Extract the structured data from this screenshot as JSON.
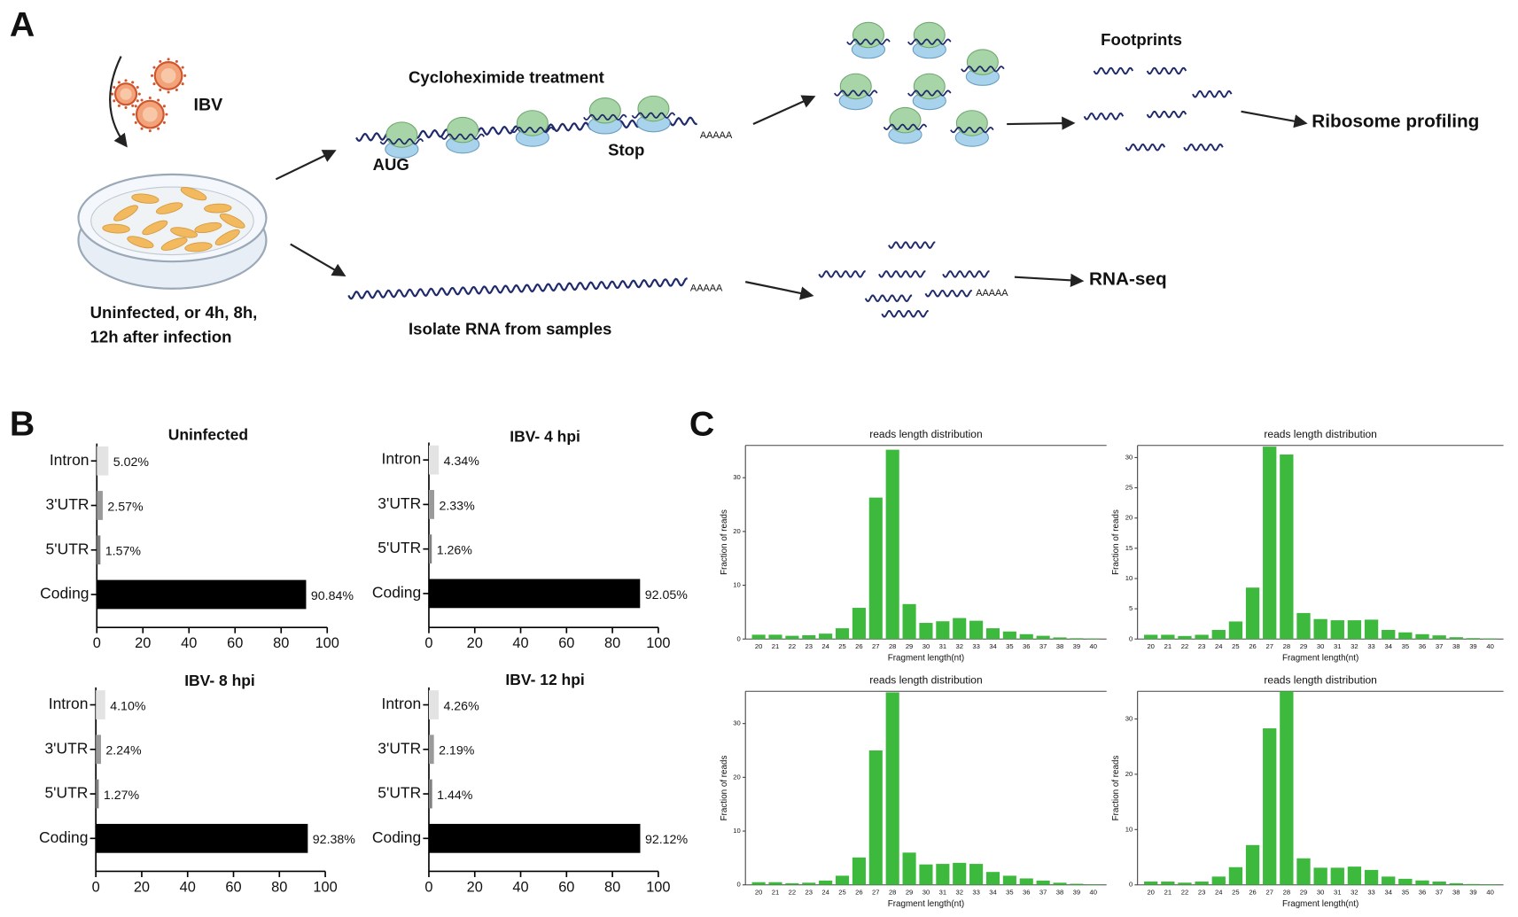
{
  "panel_labels": [
    "A",
    "B",
    "C"
  ],
  "panel_a": {
    "virus": "IBV",
    "samples": [
      "Uninfected, or 4h, 8h,",
      "12h after infection"
    ],
    "treatment": "Cycloheximide treatment",
    "start_codon": "AUG",
    "stop_codon": "Stop",
    "poly_a": [
      "AAAAA",
      "AAAAA",
      "AAAAA"
    ],
    "footprints": "Footprints",
    "ribo_output": "Ribosome profiling",
    "rna_output": "RNA-seq",
    "isolate": "Isolate RNA from samples"
  },
  "chart_data": [
    {
      "type": "bar",
      "horizontal": true,
      "title": "Uninfected",
      "categories": [
        "Intron",
        "3'UTR",
        "5'UTR",
        "Coding"
      ],
      "values": [
        5.02,
        2.57,
        1.57,
        90.84
      ],
      "value_labels": [
        "5.02%",
        "2.57%",
        "1.57%",
        "90.84%"
      ],
      "colors": [
        "#e3e3e3",
        "#9a9a9a",
        "#808080",
        "#000000"
      ],
      "xlim": [
        0,
        100
      ],
      "xticks": [
        0,
        20,
        40,
        60,
        80,
        100
      ]
    },
    {
      "type": "bar",
      "horizontal": true,
      "title": "IBV- 4 hpi",
      "categories": [
        "Intron",
        "3'UTR",
        "5'UTR",
        "Coding"
      ],
      "values": [
        4.34,
        2.33,
        1.26,
        92.05
      ],
      "value_labels": [
        "4.34%",
        "2.33%",
        "1.26%",
        "92.05%"
      ],
      "colors": [
        "#e3e3e3",
        "#9a9a9a",
        "#808080",
        "#000000"
      ],
      "xlim": [
        0,
        100
      ],
      "xticks": [
        0,
        20,
        40,
        60,
        80,
        100
      ]
    },
    {
      "type": "bar",
      "horizontal": true,
      "title": "IBV- 8 hpi",
      "categories": [
        "Intron",
        "3'UTR",
        "5'UTR",
        "Coding"
      ],
      "values": [
        4.1,
        2.24,
        1.27,
        92.38
      ],
      "value_labels": [
        "4.10%",
        "2.24%",
        "1.27%",
        "92.38%"
      ],
      "colors": [
        "#e3e3e3",
        "#9a9a9a",
        "#808080",
        "#000000"
      ],
      "xlim": [
        0,
        100
      ],
      "xticks": [
        0,
        20,
        40,
        60,
        80,
        100
      ]
    },
    {
      "type": "bar",
      "horizontal": true,
      "title": "IBV- 12 hpi",
      "categories": [
        "Intron",
        "3'UTR",
        "5'UTR",
        "Coding"
      ],
      "values": [
        4.26,
        2.19,
        1.44,
        92.12
      ],
      "value_labels": [
        "4.26%",
        "2.19%",
        "1.44%",
        "92.12%"
      ],
      "colors": [
        "#e3e3e3",
        "#9a9a9a",
        "#808080",
        "#000000"
      ],
      "xlim": [
        0,
        100
      ],
      "xticks": [
        0,
        20,
        40,
        60,
        80,
        100
      ]
    },
    {
      "type": "bar",
      "title": "reads length distribution",
      "xlabel": "Fragment length(nt)",
      "ylabel": "Fraction of reads",
      "color": "#3dba3d",
      "categories": [
        20,
        21,
        22,
        23,
        24,
        25,
        26,
        27,
        28,
        29,
        30,
        31,
        32,
        33,
        34,
        35,
        36,
        37,
        38,
        39,
        40
      ],
      "values": [
        0.8,
        0.8,
        0.6,
        0.7,
        1.0,
        2.0,
        5.8,
        26.3,
        35.2,
        6.5,
        3.0,
        3.3,
        3.9,
        3.4,
        2.0,
        1.4,
        0.9,
        0.6,
        0.3,
        0.15,
        0.1
      ],
      "ylim": [
        0,
        36
      ],
      "yticks": [
        0,
        10,
        20,
        30
      ]
    },
    {
      "type": "bar",
      "title": "reads length distribution",
      "xlabel": "Fragment length(nt)",
      "ylabel": "Fraction of reads",
      "color": "#3dba3d",
      "categories": [
        20,
        21,
        22,
        23,
        24,
        25,
        26,
        27,
        28,
        29,
        30,
        31,
        32,
        33,
        34,
        35,
        36,
        37,
        38,
        39,
        40
      ],
      "values": [
        0.7,
        0.7,
        0.5,
        0.7,
        1.5,
        2.9,
        8.5,
        31.8,
        30.5,
        4.3,
        3.3,
        3.1,
        3.1,
        3.2,
        1.5,
        1.1,
        0.8,
        0.6,
        0.3,
        0.15,
        0.1
      ],
      "ylim": [
        0,
        32
      ],
      "yticks": [
        0,
        5,
        10,
        15,
        20,
        25,
        30
      ]
    },
    {
      "type": "bar",
      "title": "reads length distribution",
      "xlabel": "Fragment length(nt)",
      "ylabel": "Fraction of reads",
      "color": "#3dba3d",
      "categories": [
        20,
        21,
        22,
        23,
        24,
        25,
        26,
        27,
        28,
        29,
        30,
        31,
        32,
        33,
        34,
        35,
        36,
        37,
        38,
        39,
        40
      ],
      "values": [
        0.5,
        0.5,
        0.3,
        0.4,
        0.8,
        1.7,
        5.1,
        25.0,
        35.8,
        6.0,
        3.8,
        3.9,
        4.1,
        3.9,
        2.4,
        1.7,
        1.2,
        0.8,
        0.4,
        0.2,
        0.1
      ],
      "ylim": [
        0,
        36
      ],
      "yticks": [
        0,
        10,
        20,
        30
      ]
    },
    {
      "type": "bar",
      "title": "reads length distribution",
      "xlabel": "Fragment length(nt)",
      "ylabel": "Fraction of reads",
      "color": "#3dba3d",
      "categories": [
        20,
        21,
        22,
        23,
        24,
        25,
        26,
        27,
        28,
        29,
        30,
        31,
        32,
        33,
        34,
        35,
        36,
        37,
        38,
        39,
        40
      ],
      "values": [
        0.6,
        0.6,
        0.4,
        0.6,
        1.5,
        3.2,
        7.2,
        28.3,
        35.0,
        4.8,
        3.1,
        3.1,
        3.3,
        2.7,
        1.5,
        1.1,
        0.8,
        0.6,
        0.3,
        0.15,
        0.1
      ],
      "ylim": [
        0,
        35
      ],
      "yticks": [
        0,
        10,
        20,
        30
      ]
    }
  ]
}
